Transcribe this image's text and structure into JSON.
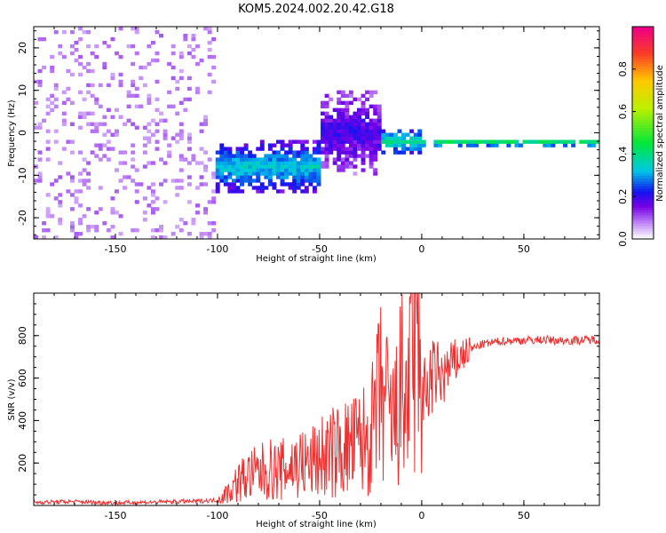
{
  "title": "KOM5.2024.002.20.42.G18",
  "chart_data": [
    {
      "type": "heatmap",
      "xlabel": "Height of straight line (km)",
      "ylabel": "Frequency (Hz)",
      "xlim": [
        -190,
        87
      ],
      "ylim": [
        -25,
        25
      ],
      "xticks": [
        -150,
        -100,
        -50,
        0,
        50
      ],
      "yticks": [
        -20,
        -10,
        0,
        10,
        20
      ],
      "colorbar": {
        "label": "Normalized spectral amplitude",
        "range": [
          0,
          1
        ],
        "ticks": [
          0.0,
          0.2,
          0.4,
          0.6,
          0.8
        ]
      },
      "description_features": [
        {
          "x_range": [
            -190,
            -100
          ],
          "freq_range": [
            -25,
            25
          ],
          "amplitude": 0.05
        },
        {
          "x_range": [
            -100,
            -50
          ],
          "freq_center": -8,
          "freq_spread": 4,
          "amplitude": 0.3
        },
        {
          "x_range": [
            -50,
            -20
          ],
          "freq_center": 0,
          "freq_spread": 6,
          "amplitude": 0.15
        },
        {
          "x_range": [
            -20,
            0
          ],
          "freq_center": -2,
          "freq_spread": 2,
          "amplitude": 0.35
        },
        {
          "x_range": [
            0,
            87
          ],
          "freq_center": -2.3,
          "freq_spread": 0.5,
          "amplitude": 0.45
        }
      ]
    },
    {
      "type": "line",
      "xlabel": "Height of straight line (km)",
      "ylabel": "SNR (v/v)",
      "xlim": [
        -190,
        87
      ],
      "ylim": [
        0,
        1000
      ],
      "xticks": [
        -150,
        -100,
        -50,
        0,
        50
      ],
      "yticks": [
        200,
        400,
        600,
        800
      ],
      "series": [
        {
          "color": "#ee3030",
          "x": [
            -190,
            -170,
            -150,
            -130,
            -110,
            -100,
            -95,
            -90,
            -85,
            -80,
            -75,
            -70,
            -65,
            -60,
            -55,
            -50,
            -45,
            -40,
            -35,
            -30,
            -25,
            -22,
            -20,
            -18,
            -15,
            -12,
            -10,
            -8,
            -5,
            -3,
            -1,
            0,
            3,
            5,
            8,
            10,
            13,
            15,
            18,
            20,
            25,
            30,
            40,
            50,
            60,
            70,
            80,
            87
          ],
          "y": [
            15,
            18,
            12,
            16,
            20,
            25,
            60,
            110,
            140,
            150,
            170,
            160,
            180,
            200,
            190,
            230,
            240,
            260,
            270,
            300,
            320,
            450,
            520,
            480,
            380,
            420,
            550,
            480,
            650,
            720,
            500,
            450,
            560,
            600,
            620,
            600,
            640,
            660,
            690,
            710,
            740,
            760,
            775,
            778,
            780,
            776,
            780,
            782
          ]
        }
      ]
    }
  ]
}
